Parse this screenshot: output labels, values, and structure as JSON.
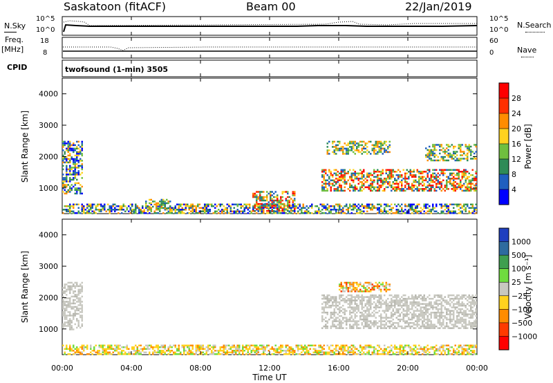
{
  "header": {
    "station": "Saskatoon (fitACF)",
    "beam": "Beam 00",
    "date": "22/Jan/2019"
  },
  "noise_panel": {
    "left_label": "N.Sky",
    "right_label": "N.Search",
    "left_top": "10^5",
    "left_bottom": "10^0",
    "right_top": "10^5",
    "right_bottom": "10^0"
  },
  "freq_panel": {
    "left_label_1": "Freq.",
    "left_label_2": "[MHz]",
    "left_top": "18",
    "left_bottom": "8",
    "right_top": "60",
    "right_bottom": "0",
    "right_label": "Nave",
    "cpid_label": "CPID",
    "mode": "twofsound (1-min) 3505"
  },
  "x_axis": {
    "label": "Time UT",
    "ticks": [
      "00:00",
      "04:00",
      "08:00",
      "12:00",
      "16:00",
      "20:00",
      "00:00"
    ]
  },
  "power_panel": {
    "y_label": "Slant Range [km]",
    "y_ticks": [
      "1000",
      "2000",
      "3000",
      "4000"
    ],
    "scale_label": "Power [dB]",
    "scale_ticks": [
      "4",
      "8",
      "12",
      "16",
      "20",
      "24",
      "28"
    ],
    "scale_colors": [
      "#0000ff",
      "#1f5fbf",
      "#2e8b57",
      "#6fbf3f",
      "#ffd21f",
      "#ff8c00",
      "#ff3000",
      "#ff0000"
    ]
  },
  "velocity_panel": {
    "y_label": "Slant Range [km]",
    "y_ticks": [
      "1000",
      "2000",
      "3000",
      "4000"
    ],
    "scale_label": "Velocity [m s⁻¹]",
    "scale_ticks": [
      "1000",
      "500",
      "100",
      "25",
      "−25",
      "−100",
      "−500",
      "−1000"
    ],
    "scale_colors": [
      "#1f3fbf",
      "#2e6b9f",
      "#3f9f4f",
      "#6fdc3f",
      "#c8c8c0",
      "#ffd21f",
      "#ff8c00",
      "#ff3a00",
      "#ff0000"
    ]
  },
  "chart_data": {
    "type": "heatmap",
    "x_range_hours": [
      0,
      24
    ],
    "y_range_km": [
      180,
      4500
    ],
    "power_regions": [
      {
        "t0": 0.0,
        "t1": 1.2,
        "r0": 800,
        "r1": 2500,
        "level": "mixed"
      },
      {
        "t0": 0.0,
        "t1": 24.0,
        "r0": 200,
        "r1": 500,
        "level": "low"
      },
      {
        "t0": 4.8,
        "t1": 6.2,
        "r0": 350,
        "r1": 650,
        "level": "medium"
      },
      {
        "t0": 11.0,
        "t1": 13.5,
        "r0": 250,
        "r1": 900,
        "level": "high"
      },
      {
        "t0": 15.0,
        "t1": 24.0,
        "r0": 900,
        "r1": 1600,
        "level": "high"
      },
      {
        "t0": 15.3,
        "t1": 19.0,
        "r0": 2100,
        "r1": 2500,
        "level": "medium"
      },
      {
        "t0": 21.0,
        "t1": 24.0,
        "r0": 1900,
        "r1": 2400,
        "level": "medium"
      }
    ],
    "velocity_regions": [
      {
        "t0": 0.0,
        "t1": 1.2,
        "r0": 1000,
        "r1": 2500,
        "class": "ground"
      },
      {
        "t0": 15.0,
        "t1": 24.0,
        "r0": 1000,
        "r1": 2100,
        "class": "ground"
      },
      {
        "t0": 16.0,
        "t1": 19.0,
        "r0": 2200,
        "r1": 2500,
        "class": "negative"
      },
      {
        "t0": 0.0,
        "t1": 24.0,
        "r0": 200,
        "r1": 500,
        "class": "small-negative"
      }
    ]
  }
}
